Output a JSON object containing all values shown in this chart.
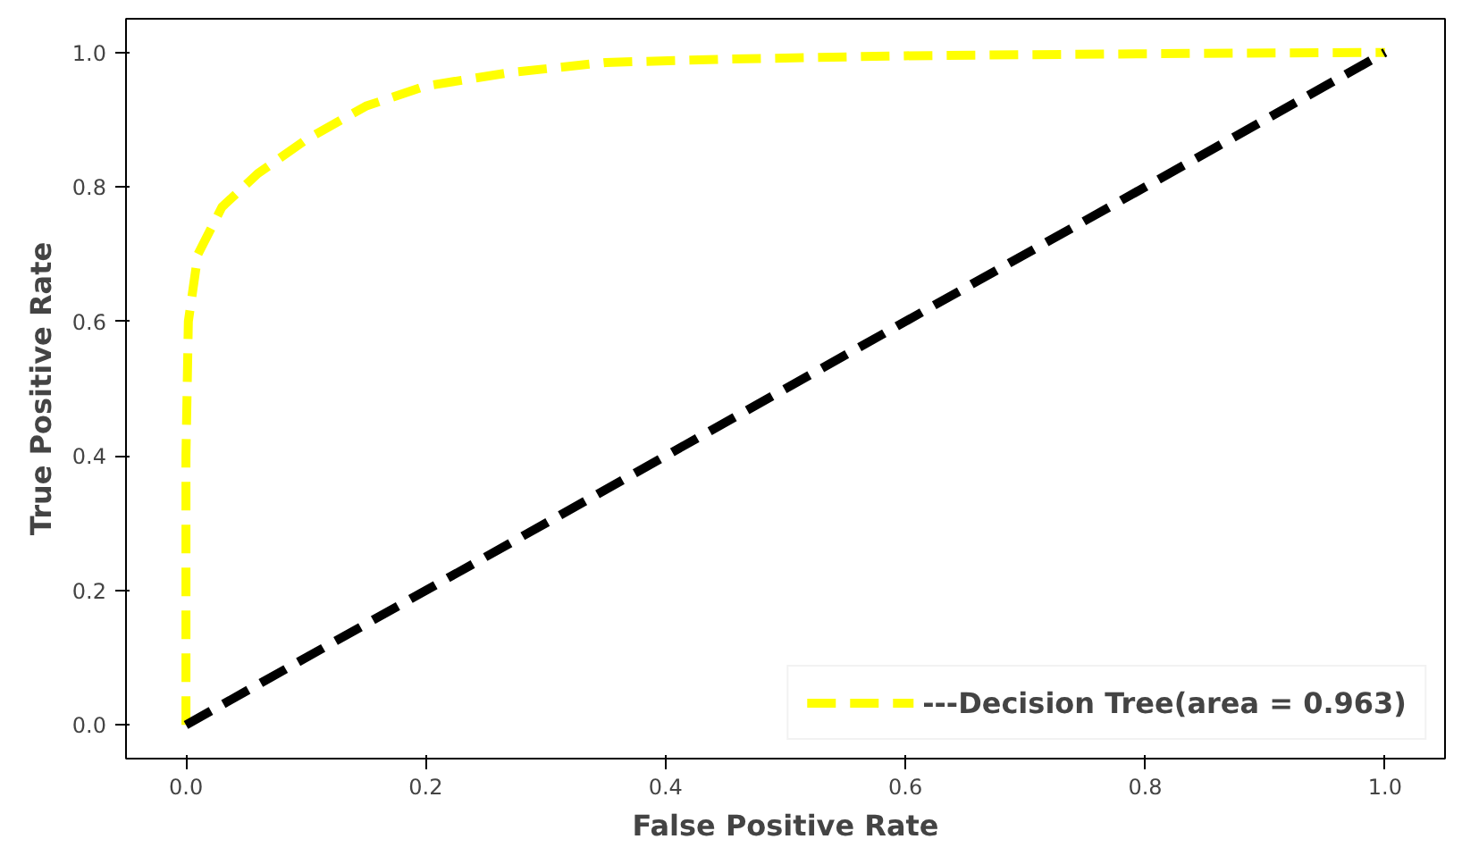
{
  "chart_data": {
    "type": "line",
    "xlabel": "False Positive Rate",
    "ylabel": "True Positive Rate",
    "xlim": [
      -0.05,
      1.05
    ],
    "ylim": [
      -0.05,
      1.05
    ],
    "xticks": [
      {
        "value": 0,
        "label": "0.0"
      },
      {
        "value": 0.2,
        "label": "0.2"
      },
      {
        "value": 0.4,
        "label": "0.4"
      },
      {
        "value": 0.6,
        "label": "0.6"
      },
      {
        "value": 0.8,
        "label": "0.8"
      },
      {
        "value": 1,
        "label": "1.0"
      }
    ],
    "yticks": [
      {
        "value": 0,
        "label": "0.0"
      },
      {
        "value": 0.2,
        "label": "0.2"
      },
      {
        "value": 0.4,
        "label": "0.4"
      },
      {
        "value": 0.6,
        "label": "0.6"
      },
      {
        "value": 0.8,
        "label": "0.8"
      },
      {
        "value": 1,
        "label": "1.0"
      }
    ],
    "grid": false,
    "legend": "bottom right",
    "marker": "none",
    "line_style": "dashed",
    "series": [
      {
        "name": "---Decision Tree(area = 0.963)",
        "color": "#ffff00",
        "x": [
          0,
          0,
          0.002,
          0.01,
          0.03,
          0.06,
          0.1,
          0.15,
          0.2,
          0.27,
          0.35,
          0.45,
          0.6,
          0.8,
          1
        ],
        "values": [
          0,
          0.4,
          0.6,
          0.7,
          0.77,
          0.82,
          0.87,
          0.92,
          0.95,
          0.97,
          0.985,
          0.99,
          0.995,
          0.998,
          1
        ]
      },
      {
        "color": "#000000",
        "x": [
          0,
          1
        ],
        "values": [
          0,
          1
        ]
      }
    ]
  }
}
